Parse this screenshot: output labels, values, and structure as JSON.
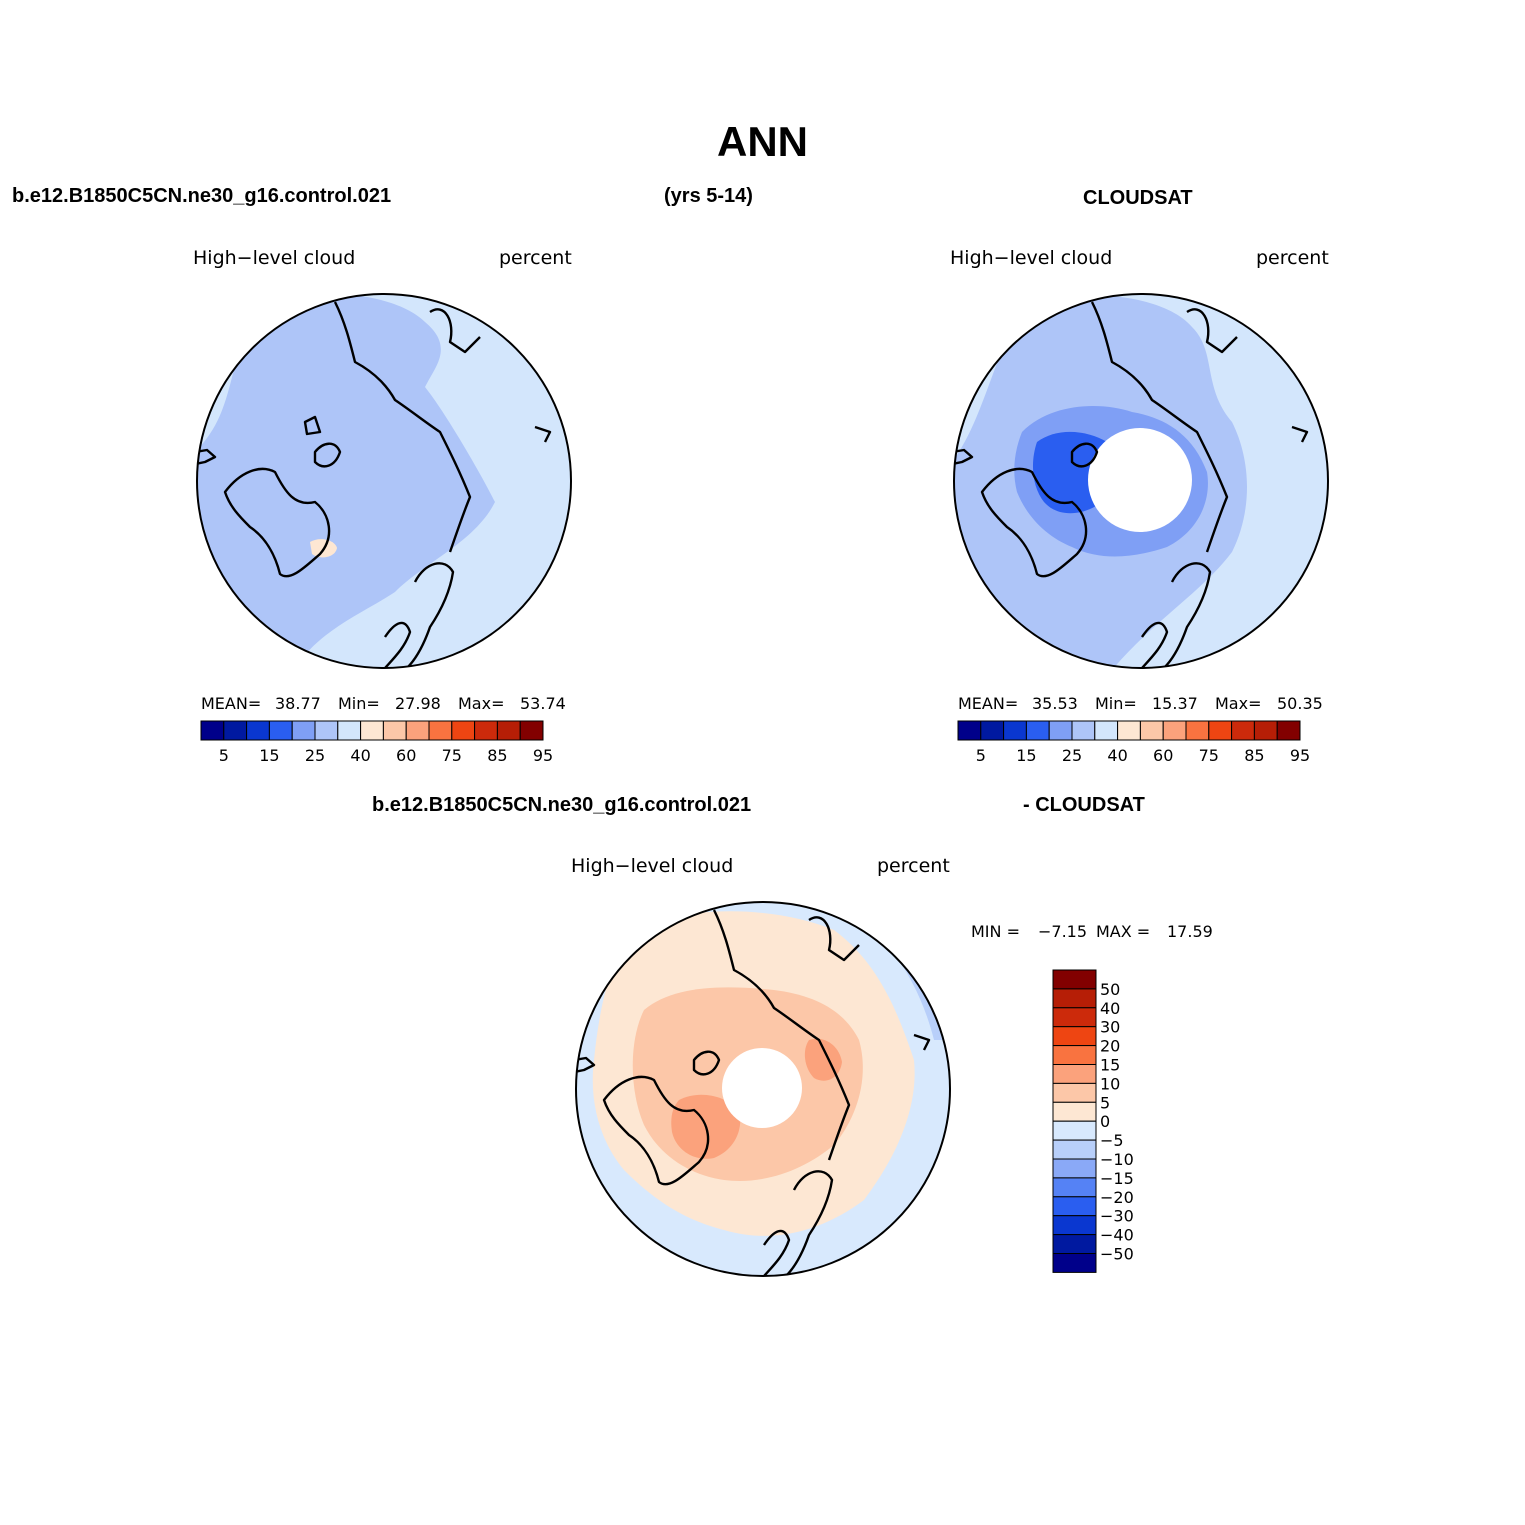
{
  "figure": {
    "title": "ANN",
    "period": "(yrs 5-14)",
    "case_name": "b.e12.B1850C5CN.ne30_g16.control.021",
    "obs_name": "CLOUDSAT",
    "diff_suffix": "- CLOUDSAT"
  },
  "panels": {
    "model": {
      "variable": "High−level cloud",
      "units": "percent",
      "mean_label": "MEAN=",
      "mean": "38.77",
      "min_label": "Min=",
      "min": "27.98",
      "max_label": "Max=",
      "max": "53.74"
    },
    "obs": {
      "variable": "High−level cloud",
      "units": "percent",
      "mean_label": "MEAN=",
      "mean": "35.53",
      "min_label": "Min=",
      "min": "15.37",
      "max_label": "Max=",
      "max": "50.35"
    },
    "diff": {
      "variable": "High−level cloud",
      "units": "percent",
      "min_label": "MIN =",
      "min": "−7.15",
      "max_label": "MAX =",
      "max": "17.59"
    }
  },
  "colorbars": {
    "abs_colors": [
      "#00008a",
      "#0019a0",
      "#0a37d0",
      "#2a5ef0",
      "#7f9ff5",
      "#aec5f8",
      "#d3e6fc",
      "#fde7d3",
      "#fcc7a8",
      "#fba27c",
      "#f97340",
      "#ee4512",
      "#cc2a0b",
      "#b61e06",
      "#820000"
    ],
    "abs_ticks": [
      "5",
      "15",
      "25",
      "40",
      "60",
      "75",
      "85",
      "95"
    ],
    "diff_colors": [
      "#00008a",
      "#0019a0",
      "#0a37d0",
      "#2a5ef0",
      "#5582f5",
      "#8aa9f7",
      "#b8cffa",
      "#d8e9fd",
      "#fde7d3",
      "#fcc7a8",
      "#fba27c",
      "#f97340",
      "#ee4512",
      "#cc2a0b",
      "#b61e06",
      "#820000"
    ],
    "diff_ticks": [
      "50",
      "40",
      "30",
      "20",
      "15",
      "10",
      "5",
      "0",
      "−5",
      "−10",
      "−15",
      "−20",
      "−30",
      "−40",
      "−50"
    ]
  },
  "map_fills": {
    "model": [
      "#d3e6fc",
      "#aec5f8",
      "#fde7d3"
    ],
    "obs": [
      "#d3e6fc",
      "#aec5f8",
      "#7f9ff5",
      "#2a5ef0"
    ],
    "diff": [
      "#d8e9fd",
      "#fde7d3",
      "#fcc7a8",
      "#fba27c",
      "#b8cffa"
    ]
  }
}
